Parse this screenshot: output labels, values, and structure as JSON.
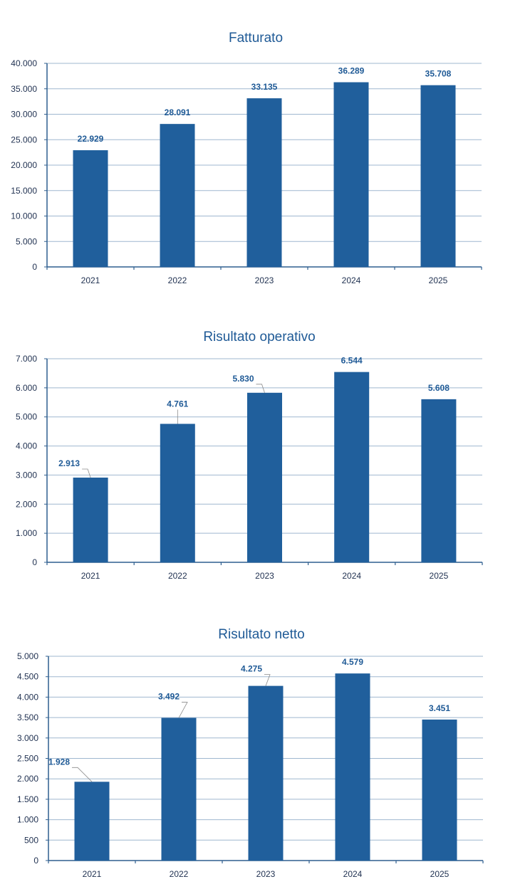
{
  "bar_color": "#205f9c",
  "axis_color": "#2f5f8f",
  "grid_color": "#9fb7cf",
  "chart_data": [
    {
      "type": "bar",
      "title": "Fatturato",
      "categories": [
        "2021",
        "2022",
        "2023",
        "2024",
        "2025"
      ],
      "values": [
        22929,
        28091,
        33135,
        36289,
        35708
      ],
      "value_labels": [
        "22.929",
        "28.091",
        "33.135",
        "36.289",
        "35.708"
      ],
      "ylim": [
        0,
        40000
      ],
      "yticks": [
        0,
        5000,
        10000,
        15000,
        20000,
        25000,
        30000,
        35000,
        40000
      ],
      "ytick_labels": [
        "0",
        "5.000",
        "10.000",
        "15.000",
        "20.000",
        "25.000",
        "30.000",
        "35.000",
        "40.000"
      ],
      "grid": true,
      "legend": "none"
    },
    {
      "type": "bar",
      "title": "Risultato operativo",
      "categories": [
        "2021",
        "2022",
        "2023",
        "2024",
        "2025"
      ],
      "values": [
        2913,
        4761,
        5830,
        6544,
        5608
      ],
      "value_labels": [
        "2.913",
        "4.761",
        "5.830",
        "6.544",
        "5.608"
      ],
      "ylim": [
        0,
        7000
      ],
      "yticks": [
        0,
        1000,
        2000,
        3000,
        4000,
        5000,
        6000,
        7000
      ],
      "ytick_labels": [
        "0",
        "1.000",
        "2.000",
        "3.000",
        "4.000",
        "5.000",
        "6.000",
        "7.000"
      ],
      "grid": true,
      "legend": "none"
    },
    {
      "type": "bar",
      "title": "Risultato netto",
      "categories": [
        "2021",
        "2022",
        "2023",
        "2024",
        "2025"
      ],
      "values": [
        1928,
        3492,
        4275,
        4579,
        3451
      ],
      "value_labels": [
        "1.928",
        "3.492",
        "4.275",
        "4.579",
        "3.451"
      ],
      "ylim": [
        0,
        5000
      ],
      "yticks": [
        0,
        500,
        1000,
        1500,
        2000,
        2500,
        3000,
        3500,
        4000,
        4500,
        5000
      ],
      "ytick_labels": [
        "0",
        "500",
        "1.000",
        "1.500",
        "2.000",
        "2.500",
        "3.000",
        "3.500",
        "4.000",
        "4.500",
        "5.000"
      ],
      "grid": true,
      "legend": "none"
    }
  ]
}
